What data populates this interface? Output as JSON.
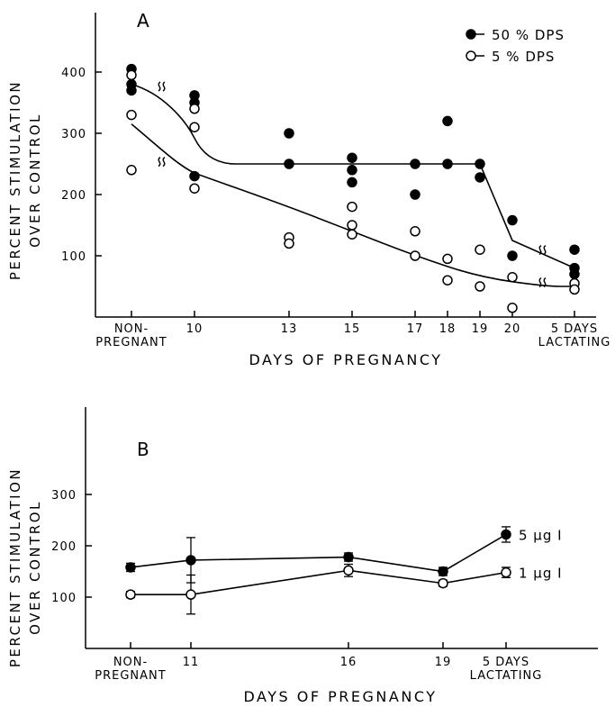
{
  "chart_data": [
    {
      "panel": "A",
      "type": "scatter",
      "xlabel": "DAYS OF PREGNANCY",
      "ylabel": [
        "PERCENT STIMULATION",
        "OVER CONTROL"
      ],
      "ylim": [
        0,
        450
      ],
      "yticks": [
        100,
        200,
        300,
        400
      ],
      "x_categories": [
        {
          "key": "np",
          "label": [
            "NON-",
            "PREGNANT"
          ]
        },
        {
          "key": "10",
          "label": [
            "10"
          ]
        },
        {
          "key": "13",
          "label": [
            "13"
          ]
        },
        {
          "key": "15",
          "label": [
            "15"
          ]
        },
        {
          "key": "17",
          "label": [
            "17"
          ]
        },
        {
          "key": "18",
          "label": [
            "18"
          ]
        },
        {
          "key": "19",
          "label": [
            "19"
          ]
        },
        {
          "key": "20",
          "label": [
            "20"
          ]
        },
        {
          "key": "lact",
          "label": [
            "5 DAYS",
            "LACTATING"
          ]
        }
      ],
      "legend_position": "top-right",
      "series": [
        {
          "name": "50 % DPS",
          "marker": "filled",
          "points": [
            [
              "np",
              405
            ],
            [
              "np",
              380
            ],
            [
              "np",
              370
            ],
            [
              "10",
              362
            ],
            [
              "10",
              350
            ],
            [
              "10",
              230
            ],
            [
              "13",
              300
            ],
            [
              "13",
              250
            ],
            [
              "15",
              260
            ],
            [
              "15",
              240
            ],
            [
              "15",
              220
            ],
            [
              "17",
              250
            ],
            [
              "17",
              200
            ],
            [
              "18",
              320
            ],
            [
              "18",
              250
            ],
            [
              "19",
              250
            ],
            [
              "19",
              228
            ],
            [
              "20",
              158
            ],
            [
              "20",
              100
            ],
            [
              "lact",
              110
            ],
            [
              "lact",
              80
            ],
            [
              "lact",
              70
            ]
          ],
          "fit_curve": [
            [
              "np",
              380
            ],
            [
              "10",
              292
            ],
            [
              "11.3",
              250
            ],
            [
              "19",
              250
            ],
            [
              "20",
              125
            ],
            [
              "lact",
              80
            ]
          ]
        },
        {
          "name": "5 % DPS",
          "marker": "open",
          "points": [
            [
              "np",
              395
            ],
            [
              "np",
              330
            ],
            [
              "np",
              240
            ],
            [
              "10",
              340
            ],
            [
              "10",
              310
            ],
            [
              "10",
              210
            ],
            [
              "13",
              130
            ],
            [
              "13",
              120
            ],
            [
              "15",
              180
            ],
            [
              "15",
              150
            ],
            [
              "15",
              135
            ],
            [
              "17",
              140
            ],
            [
              "17",
              100
            ],
            [
              "18",
              95
            ],
            [
              "18",
              60
            ],
            [
              "19",
              110
            ],
            [
              "19",
              50
            ],
            [
              "20",
              65
            ],
            [
              "20",
              15
            ],
            [
              "lact",
              55
            ],
            [
              "lact",
              45
            ]
          ],
          "fit_curve": [
            [
              "np",
              315
            ],
            [
              "10",
              235
            ],
            [
              "13",
              180
            ],
            [
              "15",
              140
            ],
            [
              "17",
              100
            ],
            [
              "19",
              65
            ],
            [
              "21.2",
              50
            ],
            [
              "lact",
              50
            ]
          ]
        }
      ]
    },
    {
      "panel": "B",
      "type": "line",
      "xlabel": "DAYS OF PREGNANCY",
      "ylabel": [
        "PERCENT STIMULATION",
        "OVER CONTROL"
      ],
      "ylim": [
        0,
        350
      ],
      "yticks": [
        100,
        200,
        300
      ],
      "x_categories": [
        {
          "key": "np",
          "label": [
            "NON-",
            "PREGNANT"
          ]
        },
        {
          "key": "11",
          "label": [
            "11"
          ]
        },
        {
          "key": "16",
          "label": [
            "16"
          ]
        },
        {
          "key": "19",
          "label": [
            "19"
          ]
        },
        {
          "key": "lact",
          "label": [
            "5 DAYS",
            "LACTATING"
          ]
        }
      ],
      "series": [
        {
          "name": "5 μg I",
          "label_text": "5 μg I",
          "marker": "filled",
          "points": [
            [
              "np",
              158
            ],
            [
              "11",
              172
            ],
            [
              "16",
              178
            ],
            [
              "19",
              150
            ],
            [
              "lact",
              222
            ]
          ],
          "errors": [
            8,
            44,
            8,
            8,
            15
          ]
        },
        {
          "name": "1 μg I",
          "label_text": "1 μg I",
          "marker": "open",
          "points": [
            [
              "np",
              105
            ],
            [
              "11",
              105
            ],
            [
              "16",
              152
            ],
            [
              "19",
              127
            ],
            [
              "lact",
              148
            ]
          ],
          "errors": [
            6,
            38,
            12,
            6,
            10
          ]
        }
      ]
    }
  ],
  "panels": {
    "A": {
      "letter": "A",
      "xlabel": "DAYS OF PREGNANCY",
      "ylabel1": "PERCENT STIMULATION",
      "ylabel2": "OVER CONTROL"
    },
    "B": {
      "letter": "B",
      "xlabel": "DAYS OF PREGNANCY",
      "ylabel1": "PERCENT STIMULATION",
      "ylabel2": "OVER CONTROL"
    }
  },
  "legend": [
    {
      "label": "50 % DPS",
      "marker": "filled"
    },
    {
      "label": "5 % DPS",
      "marker": "open"
    }
  ]
}
